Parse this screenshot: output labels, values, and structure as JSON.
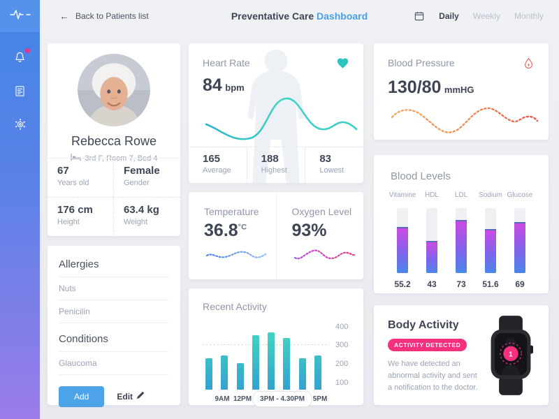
{
  "header": {
    "back_label": "Back to Patients list",
    "title": "Preventative Care",
    "title_accent": "Dashboard",
    "tabs": [
      {
        "label": "Daily",
        "active": true
      },
      {
        "label": "Weekly",
        "active": false
      },
      {
        "label": "Monthly",
        "active": false
      }
    ]
  },
  "sidebar": {
    "icons": [
      "pulse-logo",
      "notifications-bell",
      "reports-document",
      "settings-gear"
    ],
    "has_unread_notification": true
  },
  "patient": {
    "name": "Rebecca Rowe",
    "location": "3rd F, Room 7, Bed 4",
    "stats": [
      {
        "value": "67",
        "label": "Years old"
      },
      {
        "value": "Female",
        "label": "Gender"
      },
      {
        "value": "176 cm",
        "label": "Height"
      },
      {
        "value": "63.4 kg",
        "label": "Weight"
      }
    ]
  },
  "allergies": {
    "title": "Allergies",
    "items": [
      "Nuts",
      "Penicilin"
    ],
    "conditions_title": "Conditions",
    "conditions": [
      "Glaucoma"
    ],
    "add_label": "Add",
    "edit_label": "Edit"
  },
  "heart_rate": {
    "title": "Heart Rate",
    "value": "84",
    "unit": "bpm",
    "stats": [
      {
        "value": "165",
        "label": "Average"
      },
      {
        "value": "188",
        "label": "Highest"
      },
      {
        "value": "83",
        "label": "Lowest"
      }
    ]
  },
  "blood_pressure": {
    "title": "Blood Pressure",
    "value": "130/80",
    "unit": "mmHG"
  },
  "vitals": {
    "temperature": {
      "title": "Temperature",
      "value": "36.8",
      "unit": "°C"
    },
    "oxygen": {
      "title": "Oxygen Level",
      "value": "93%"
    }
  },
  "body_activity": {
    "title": "Body Activity",
    "badge": "ACTIVITY DETECTED",
    "message": "We have detected an abnormal activity and sent a notification to the doctor.",
    "watch_notification_count": "1"
  },
  "colors": {
    "accent_blue": "#4a9fe8",
    "teal": "#35c7c5",
    "pink": "#f5317f",
    "bp_orange": "#f0a95e",
    "bp_red": "#e8534e",
    "bar_blue": "#4b86ea",
    "bar_magenta": "#cc4ae2",
    "sidebar_top": "#4285e6",
    "sidebar_bottom": "#9b7ce8"
  },
  "chart_data": [
    {
      "type": "bar",
      "title": "Blood Levels",
      "categories": [
        "Vitamine",
        "HDL",
        "LDL",
        "Sodium",
        "Glucose"
      ],
      "values": [
        55.2,
        43,
        73,
        51.6,
        69
      ],
      "fill_percent": [
        71,
        50,
        82,
        68,
        78
      ],
      "orientation": "vertical",
      "bar_gradient": [
        "#4b86ea",
        "#cc4ae2"
      ],
      "value_labels": "below bars"
    },
    {
      "type": "bar",
      "title": "Recent Activity",
      "x_labels": [
        "9AM",
        "12PM",
        "3PM - 4.30PM",
        "5PM"
      ],
      "values": [
        230,
        245,
        205,
        355,
        370,
        340,
        230,
        245
      ],
      "yticks": [
        100,
        200,
        300,
        400
      ],
      "ylim": [
        100,
        400
      ],
      "gridline_value": 300,
      "legend": "none",
      "bar_gradient": [
        "#34a2cd",
        "#46ddc2"
      ]
    },
    {
      "type": "line",
      "title": "Heart Rate sparkline",
      "style": "solid wave, no axes",
      "color": "#35c7c5"
    },
    {
      "type": "line",
      "title": "Blood Pressure sparkline",
      "style": "dotted wave, no axes",
      "color": "#f0a95e → #e8534e"
    },
    {
      "type": "line",
      "title": "Temperature sparkline",
      "style": "dotted wave, no axes",
      "color": "#4d7de8"
    },
    {
      "type": "line",
      "title": "Oxygen sparkline",
      "style": "dotted wave, no axes",
      "color": "#b44ae0 → #f03f87"
    }
  ]
}
